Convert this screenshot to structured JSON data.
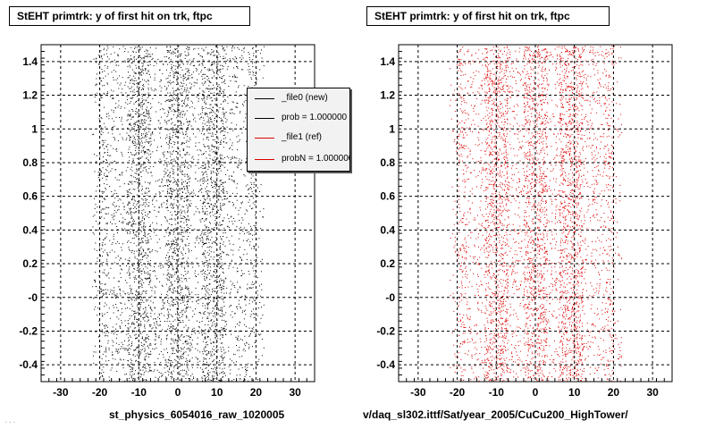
{
  "colors": {
    "new_series": "#000000",
    "ref_series": "#dd0000",
    "grid": "#000000"
  },
  "panels": [
    {
      "title": "StEHT primtrk: y of first hit on trk, ftpc",
      "xcaption": "st_physics_6054016_raw_1020005"
    },
    {
      "title": "StEHT primtrk: y of first hit on trk, ftpc",
      "xcaption": "v/daq_sl302.ittf/Sat/year_2005/CuCu200_HighTower/"
    }
  ],
  "legend": [
    {
      "label": "_file0 (new)",
      "color": "#000000"
    },
    {
      "label": "prob = 1.000000",
      "color": "#000000"
    },
    {
      "label": "_file1 (ref)",
      "color": "#dd0000"
    },
    {
      "label": "probN = 1.000000",
      "color": "#dd0000"
    }
  ],
  "footer_note": "...",
  "chart_data": [
    {
      "type": "scatter",
      "title": "StEHT primtrk: y of first hit on trk, ftpc",
      "xlabel": "st_physics_6054016_raw_1020005",
      "ylabel": "",
      "xlim": [
        -35,
        35
      ],
      "ylim": [
        -0.5,
        1.5
      ],
      "x_ticks": [
        -30,
        -20,
        -10,
        0,
        10,
        20,
        30
      ],
      "x_tick_labels": [
        "-30",
        "-20",
        "-10",
        "0",
        "10",
        "20",
        "30"
      ],
      "y_ticks": [
        -0.4,
        -0.2,
        0.0,
        0.2,
        0.4,
        0.6,
        0.8,
        1.0,
        1.2,
        1.4
      ],
      "y_tick_labels": [
        "-0.4",
        "-0.2",
        "-0",
        "0.2",
        "0.4",
        "0.6",
        "0.8",
        "1",
        "1.2",
        "1.4"
      ],
      "grid": true,
      "legend_position": "top-right",
      "series": [
        {
          "name": "_file0 (new)",
          "color": "#000000",
          "x_range": [
            -22,
            22
          ],
          "y_range": [
            -0.5,
            1.5
          ],
          "dense_bands_x": [
            -10,
            0,
            9
          ]
        }
      ]
    },
    {
      "type": "scatter",
      "title": "StEHT primtrk: y of first hit on trk, ftpc",
      "xlabel": "v/daq_sl302.ittf/Sat/year_2005/CuCu200_HighTower/",
      "ylabel": "",
      "xlim": [
        -35,
        35
      ],
      "ylim": [
        -0.5,
        1.5
      ],
      "x_ticks": [
        -30,
        -20,
        -10,
        0,
        10,
        20,
        30
      ],
      "x_tick_labels": [
        "-30",
        "-20",
        "-10",
        "0",
        "10",
        "20",
        "30"
      ],
      "y_ticks": [
        -0.4,
        -0.2,
        0.0,
        0.2,
        0.4,
        0.6,
        0.8,
        1.0,
        1.2,
        1.4
      ],
      "y_tick_labels": [
        "-0.4",
        "-0.2",
        "-0",
        "0.2",
        "0.4",
        "0.6",
        "0.8",
        "1",
        "1.2",
        "1.4"
      ],
      "grid": true,
      "series": [
        {
          "name": "_file1 (ref)",
          "color": "#dd0000",
          "x_range": [
            -22,
            22
          ],
          "y_range": [
            -0.5,
            1.5
          ],
          "dense_bands_x": [
            -10,
            0,
            9
          ]
        }
      ]
    }
  ]
}
